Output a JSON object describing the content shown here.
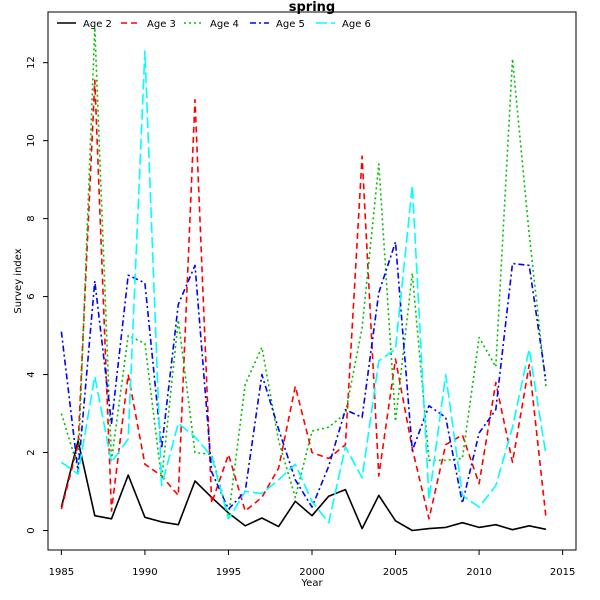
{
  "chart_data": {
    "type": "line",
    "title": "spring",
    "xlabel": "Year",
    "ylabel": "Survey index",
    "xlim": [
      1984.2,
      2015.8
    ],
    "ylim": [
      -0.5,
      13.3
    ],
    "x_ticks": [
      1985,
      1990,
      1995,
      2000,
      2005,
      2010,
      2015
    ],
    "y_ticks": [
      0,
      2,
      4,
      6,
      8,
      10,
      12
    ],
    "grid": false,
    "legend_position": "top",
    "x": [
      1985,
      1986,
      1987,
      1988,
      1989,
      1990,
      1991,
      1992,
      1993,
      1994,
      1995,
      1996,
      1997,
      1998,
      1999,
      2000,
      2001,
      2002,
      2003,
      2004,
      2005,
      2006,
      2007,
      2008,
      2009,
      2010,
      2011,
      2012,
      2013,
      2014
    ],
    "series": [
      {
        "name": "Age 2",
        "color": "#000000",
        "dash": "solid",
        "values": [
          0.6,
          2.3,
          0.38,
          0.3,
          1.42,
          0.34,
          0.22,
          0.15,
          1.27,
          0.85,
          0.45,
          0.12,
          0.32,
          0.1,
          0.75,
          0.38,
          0.88,
          1.05,
          0.05,
          0.9,
          0.25,
          0.0,
          0.05,
          0.08,
          0.2,
          0.08,
          0.15,
          0.02,
          0.12,
          0.03
        ]
      },
      {
        "name": "Age 3",
        "color": "#ff0000",
        "dash": "dashed",
        "values": [
          0.55,
          2.2,
          11.55,
          0.5,
          4.0,
          1.7,
          1.4,
          0.9,
          11.05,
          0.7,
          1.95,
          0.5,
          0.85,
          1.6,
          3.7,
          2.0,
          1.85,
          2.2,
          9.6,
          1.4,
          4.4,
          2.1,
          0.3,
          2.2,
          2.45,
          1.2,
          3.8,
          1.75,
          4.25,
          0.35
        ]
      },
      {
        "name": "Age 4",
        "color": "#00c000",
        "dash": "dotted",
        "values": [
          3.0,
          1.6,
          12.9,
          1.8,
          5.0,
          4.8,
          1.3,
          5.4,
          2.0,
          1.95,
          0.35,
          3.75,
          4.7,
          2.3,
          0.85,
          2.55,
          2.65,
          3.0,
          5.2,
          9.4,
          2.8,
          6.6,
          1.8,
          1.8,
          1.85,
          4.95,
          4.2,
          12.1,
          7.6,
          3.7
        ]
      },
      {
        "name": "Age 5",
        "color": "#0000ff",
        "dash": "dashdot",
        "values": [
          5.1,
          1.5,
          6.4,
          2.75,
          6.55,
          6.35,
          2.1,
          5.8,
          6.8,
          1.5,
          0.55,
          1.0,
          4.0,
          2.6,
          1.3,
          0.6,
          1.65,
          3.1,
          2.9,
          6.1,
          7.4,
          2.05,
          3.2,
          2.9,
          0.7,
          2.5,
          3.1,
          6.85,
          6.8,
          3.85
        ]
      },
      {
        "name": "Age 6",
        "color": "#00ffff",
        "dash": "longdash",
        "values": [
          1.75,
          1.45,
          3.95,
          1.75,
          2.35,
          12.3,
          1.15,
          2.75,
          2.4,
          1.9,
          0.3,
          1.0,
          0.95,
          1.3,
          1.7,
          0.75,
          0.2,
          2.15,
          1.35,
          4.35,
          4.65,
          8.85,
          0.8,
          4.0,
          0.9,
          0.6,
          1.15,
          2.65,
          4.65,
          1.95
        ]
      }
    ]
  }
}
